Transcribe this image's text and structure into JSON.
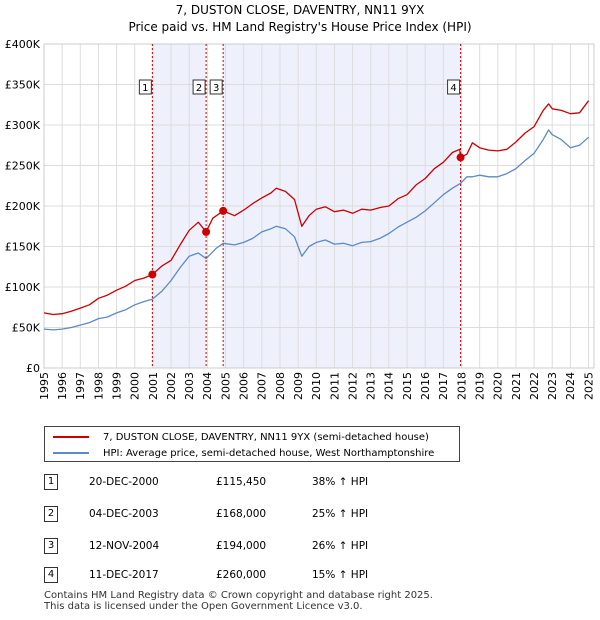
{
  "colors": {
    "property": "#cc0000",
    "hpi": "#5b8ac8",
    "shade": "#eef1fb",
    "grid": "#dddddd",
    "marker": "#cc0000"
  },
  "chart_data": {
    "type": "line",
    "title": "7, DUSTON CLOSE, DAVENTRY, NN11 9YX",
    "subtitle": "Price paid vs. HM Land Registry's House Price Index (HPI)",
    "xlabel": "",
    "ylabel": "",
    "xlim": [
      1995,
      2025.3
    ],
    "ylim": [
      0,
      400000
    ],
    "y_ticks": [
      {
        "value": 0,
        "label": "£0"
      },
      {
        "value": 50000,
        "label": "£50K"
      },
      {
        "value": 100000,
        "label": "£100K"
      },
      {
        "value": 150000,
        "label": "£150K"
      },
      {
        "value": 200000,
        "label": "£200K"
      },
      {
        "value": 250000,
        "label": "£250K"
      },
      {
        "value": 300000,
        "label": "£300K"
      },
      {
        "value": 350000,
        "label": "£350K"
      },
      {
        "value": 400000,
        "label": "£400K"
      }
    ],
    "x_ticks": [
      "1995",
      "1996",
      "1997",
      "1998",
      "1999",
      "2000",
      "2001",
      "2002",
      "2003",
      "2004",
      "2005",
      "2006",
      "2007",
      "2008",
      "2009",
      "2010",
      "2011",
      "2012",
      "2013",
      "2014",
      "2015",
      "2016",
      "2017",
      "2018",
      "2019",
      "2020",
      "2021",
      "2022",
      "2023",
      "2024",
      "2025"
    ],
    "shaded_ranges": [
      [
        2000.97,
        2003.93
      ],
      [
        2004.87,
        2017.95
      ]
    ],
    "legend_position": "below",
    "series": [
      {
        "name": "7, DUSTON CLOSE, DAVENTRY, NN11 9YX (semi-detached house)",
        "x": [
          1995,
          1995.5,
          1996,
          1996.5,
          1997,
          1997.5,
          1998,
          1998.5,
          1999,
          1999.5,
          2000,
          2000.5,
          2000.97,
          2001.5,
          2002,
          2002.5,
          2003,
          2003.5,
          2003.93,
          2004.3,
          2004.87,
          2005.5,
          2006,
          2006.5,
          2007,
          2007.5,
          2007.8,
          2008.3,
          2008.8,
          2009.2,
          2009.6,
          2010,
          2010.5,
          2011,
          2011.5,
          2012,
          2012.5,
          2013,
          2013.5,
          2014,
          2014.5,
          2015,
          2015.5,
          2016,
          2016.5,
          2017,
          2017.5,
          2017.9,
          2017.95,
          2018.3,
          2018.6,
          2019,
          2019.5,
          2020,
          2020.5,
          2021,
          2021.5,
          2022,
          2022.5,
          2022.8,
          2023,
          2023.5,
          2024,
          2024.5,
          2025
        ],
        "values": [
          68000,
          66000,
          67000,
          70000,
          74000,
          78000,
          86000,
          90000,
          96000,
          101000,
          108000,
          111000,
          115450,
          126000,
          133000,
          152000,
          170000,
          180000,
          168000,
          185000,
          194000,
          188000,
          195000,
          203000,
          210000,
          216000,
          222000,
          218000,
          208000,
          175000,
          188000,
          196000,
          199000,
          193000,
          195000,
          191000,
          196000,
          195000,
          198000,
          200000,
          209000,
          214000,
          226000,
          234000,
          246000,
          254000,
          266000,
          270000,
          260000,
          264000,
          278000,
          272000,
          269000,
          268000,
          270000,
          279000,
          290000,
          298000,
          318000,
          326000,
          320000,
          318000,
          314000,
          315000,
          330000
        ]
      },
      {
        "name": "HPI: Average price, semi-detached house, West Northamptonshire",
        "x": [
          1995,
          1995.5,
          1996,
          1996.5,
          1997,
          1997.5,
          1998,
          1998.5,
          1999,
          1999.5,
          2000,
          2000.5,
          2000.97,
          2001.5,
          2002,
          2002.5,
          2003,
          2003.5,
          2003.93,
          2004.5,
          2004.87,
          2005.5,
          2006,
          2006.5,
          2007,
          2007.5,
          2007.8,
          2008.3,
          2008.8,
          2009.2,
          2009.6,
          2010,
          2010.5,
          2011,
          2011.5,
          2012,
          2012.5,
          2013,
          2013.5,
          2014,
          2014.5,
          2015,
          2015.5,
          2016,
          2016.5,
          2017,
          2017.5,
          2017.95,
          2018.3,
          2018.6,
          2019,
          2019.5,
          2020,
          2020.5,
          2021,
          2021.5,
          2022,
          2022.5,
          2022.8,
          2023,
          2023.5,
          2024,
          2024.5,
          2025
        ],
        "values": [
          48000,
          47000,
          48000,
          50000,
          53000,
          56000,
          61000,
          63000,
          68000,
          72000,
          78000,
          82000,
          85000,
          95000,
          108000,
          124000,
          138000,
          142000,
          135000,
          148000,
          154000,
          152000,
          155000,
          160000,
          168000,
          172000,
          175000,
          172000,
          162000,
          138000,
          150000,
          155000,
          158000,
          153000,
          154000,
          151000,
          155000,
          156000,
          160000,
          166000,
          174000,
          180000,
          186000,
          194000,
          204000,
          214000,
          222000,
          228000,
          236000,
          236000,
          238000,
          236000,
          236000,
          240000,
          246000,
          256000,
          265000,
          282000,
          294000,
          288000,
          282000,
          272000,
          275000,
          285000
        ]
      }
    ],
    "transactions_markers": [
      {
        "label": "1",
        "x": 2000.97,
        "value": 115450
      },
      {
        "label": "2",
        "x": 2003.93,
        "value": 168000
      },
      {
        "label": "3",
        "x": 2004.87,
        "value": 194000
      },
      {
        "label": "4",
        "x": 2017.95,
        "value": 260000
      }
    ]
  },
  "legend": {
    "property_label": "7, DUSTON CLOSE, DAVENTRY, NN11 9YX (semi-detached house)",
    "hpi_label": "HPI: Average price, semi-detached house, West Northamptonshire"
  },
  "transactions": [
    {
      "num": "1",
      "date": "20-DEC-2000",
      "price": "£115,450",
      "hpi": "38% ↑ HPI"
    },
    {
      "num": "2",
      "date": "04-DEC-2003",
      "price": "£168,000",
      "hpi": "25% ↑ HPI"
    },
    {
      "num": "3",
      "date": "12-NOV-2004",
      "price": "£194,000",
      "hpi": "26% ↑ HPI"
    },
    {
      "num": "4",
      "date": "11-DEC-2017",
      "price": "£260,000",
      "hpi": "15% ↑ HPI"
    }
  ],
  "footer": {
    "line1": "Contains HM Land Registry data © Crown copyright and database right 2025.",
    "line2": "This data is licensed under the Open Government Licence v3.0."
  }
}
